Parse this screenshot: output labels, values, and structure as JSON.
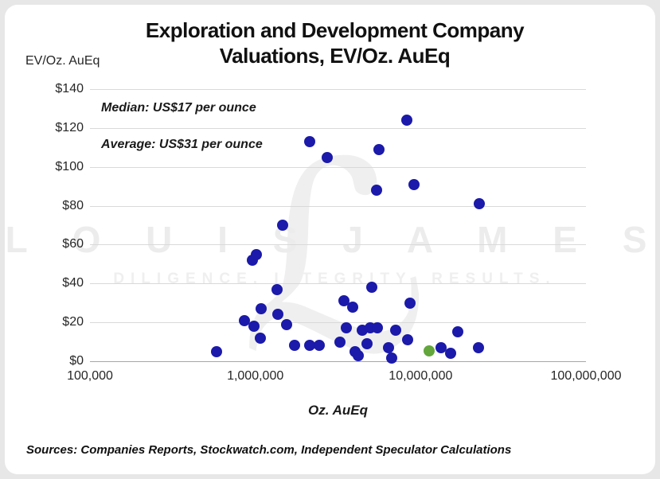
{
  "title": {
    "line1": "Exploration and Development Company",
    "line2": "Valuations, EV/Oz. AuEq"
  },
  "y_axis_unit": "EV/Oz. AuEq",
  "annotations": {
    "median": "Median: US$17 per ounce",
    "average": "Average: US$31 per ounce"
  },
  "watermark": {
    "monogram": "ℒ",
    "name": "L O U I S   J A M E S",
    "tagline": "DILIGENCE. INTEGRITY. RESULTS."
  },
  "source_note": "Sources: Companies Reports, Stockwatch.com, Independent Speculator Calculations",
  "colors": {
    "dot_navy": "#1b1aaa",
    "dot_green": "#62a63c",
    "gridline": "#d9d9d9",
    "axis_line": "#a6a6a6",
    "watermark_gray": "#ececec"
  },
  "chart_data": {
    "type": "scatter",
    "title": "Exploration and Development Company Valuations, EV/Oz. AuEq",
    "xlabel": "Oz. AuEq",
    "ylabel": "EV/Oz. AuEq",
    "x_scale": "log",
    "xlim": [
      100000,
      100000000
    ],
    "ylim": [
      0,
      140
    ],
    "grid": true,
    "x_ticks": [
      "100,000",
      "1,000,000",
      "10,000,000",
      "100,000,000"
    ],
    "x_tick_values": [
      100000,
      1000000,
      10000000,
      100000000
    ],
    "y_ticks": [
      "$0",
      "$20",
      "$40",
      "$60",
      "$80",
      "$100",
      "$120",
      "$140"
    ],
    "y_tick_values": [
      0,
      20,
      40,
      60,
      80,
      100,
      120,
      140
    ],
    "median_usd_per_oz": 17,
    "average_usd_per_oz": 31,
    "series": [
      {
        "name": "exploration-development-companies",
        "color": "#1b1aaa",
        "points": [
          [
            580000,
            5
          ],
          [
            860000,
            21
          ],
          [
            960000,
            52
          ],
          [
            1010000,
            55
          ],
          [
            980000,
            18
          ],
          [
            1080000,
            27
          ],
          [
            1070000,
            12
          ],
          [
            1360000,
            37
          ],
          [
            1370000,
            24
          ],
          [
            1460000,
            70
          ],
          [
            1540000,
            19
          ],
          [
            1720000,
            8
          ],
          [
            2130000,
            113
          ],
          [
            2130000,
            8
          ],
          [
            2440000,
            8
          ],
          [
            2730000,
            105
          ],
          [
            3250000,
            10
          ],
          [
            3430000,
            31
          ],
          [
            3550000,
            17
          ],
          [
            3900000,
            28
          ],
          [
            4000000,
            5
          ],
          [
            4200000,
            3
          ],
          [
            4450000,
            16
          ],
          [
            4750000,
            9
          ],
          [
            4970000,
            17
          ],
          [
            5060000,
            38
          ],
          [
            5400000,
            88
          ],
          [
            5450000,
            17
          ],
          [
            5620000,
            109
          ],
          [
            6420000,
            7
          ],
          [
            6700000,
            1.5
          ],
          [
            7050000,
            16
          ],
          [
            8260000,
            124
          ],
          [
            8300000,
            11
          ],
          [
            8630000,
            30
          ],
          [
            9100000,
            91
          ],
          [
            13300000,
            7
          ],
          [
            15200000,
            4
          ],
          [
            16700000,
            15
          ],
          [
            22400000,
            7
          ],
          [
            22700000,
            81
          ]
        ]
      },
      {
        "name": "highlighted-company",
        "color": "#62a63c",
        "points": [
          [
            11200000,
            5.5
          ]
        ]
      }
    ]
  }
}
